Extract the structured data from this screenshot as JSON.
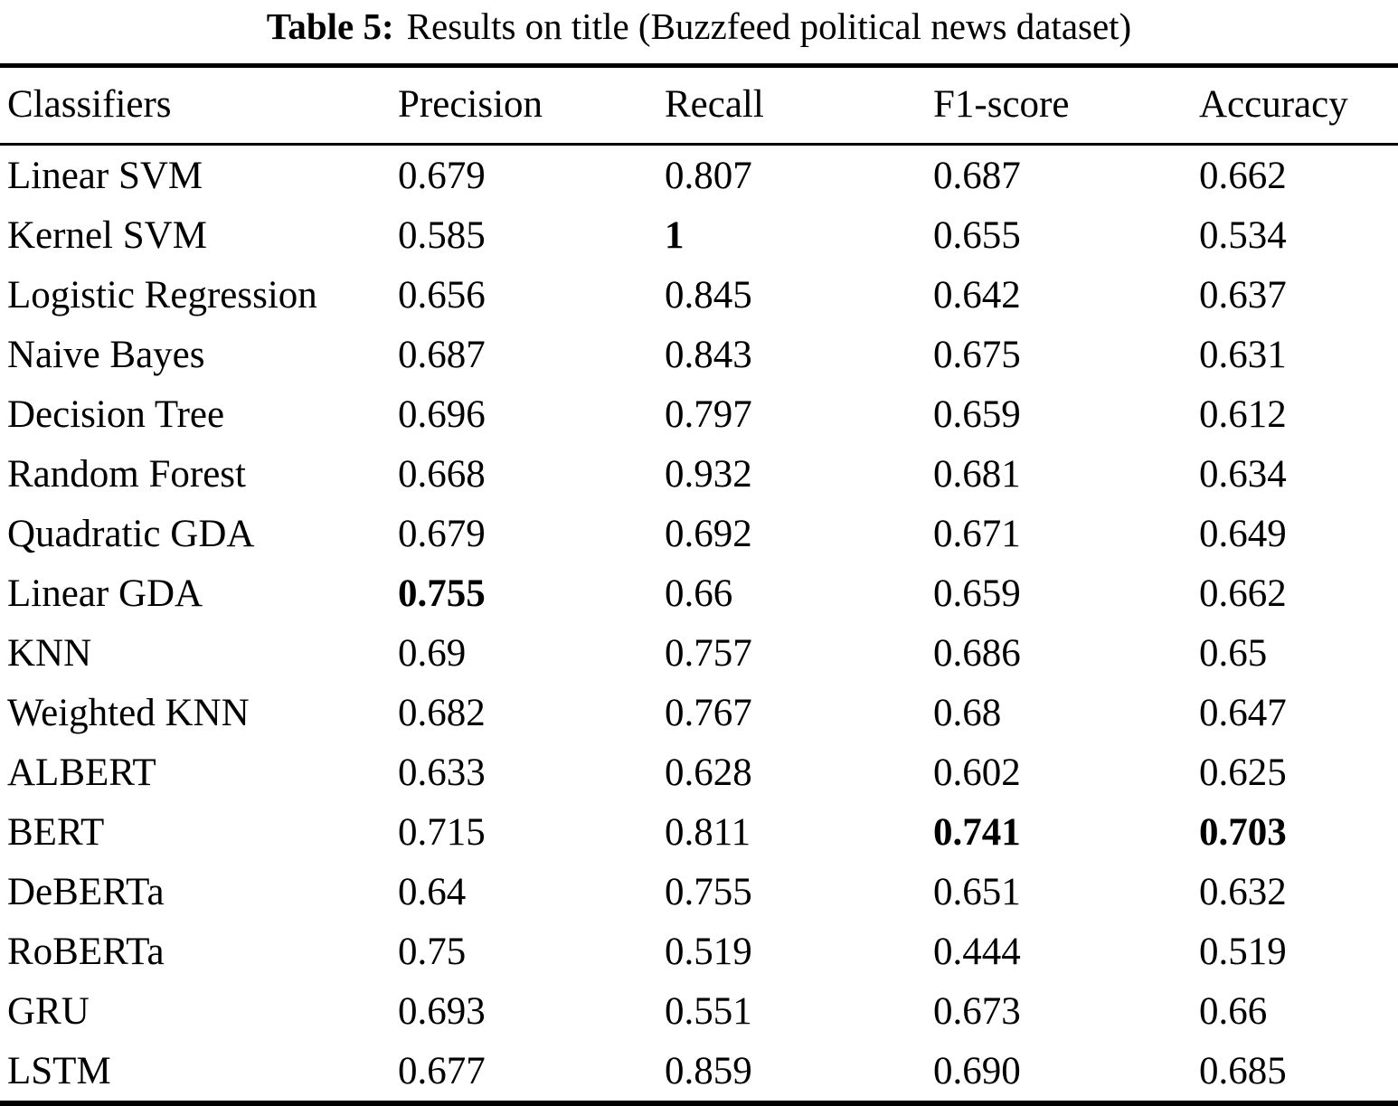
{
  "caption": {
    "label": "Table 5:",
    "text": "Results on title (Buzzfeed political news dataset)"
  },
  "table": {
    "columns": [
      "Classifiers",
      "Precision",
      "Recall",
      "F1-score",
      "Accuracy"
    ],
    "rows": [
      {
        "cells": [
          {
            "text": "Linear SVM"
          },
          {
            "text": "0.679"
          },
          {
            "text": "0.807"
          },
          {
            "text": "0.687"
          },
          {
            "text": "0.662"
          }
        ]
      },
      {
        "cells": [
          {
            "text": "Kernel SVM"
          },
          {
            "text": "0.585"
          },
          {
            "text": "1",
            "bold": true
          },
          {
            "text": "0.655"
          },
          {
            "text": "0.534"
          }
        ]
      },
      {
        "cells": [
          {
            "text": "Logistic Regression"
          },
          {
            "text": "0.656"
          },
          {
            "text": "0.845"
          },
          {
            "text": "0.642"
          },
          {
            "text": "0.637"
          }
        ]
      },
      {
        "cells": [
          {
            "text": "Naive Bayes"
          },
          {
            "text": "0.687"
          },
          {
            "text": "0.843"
          },
          {
            "text": "0.675"
          },
          {
            "text": "0.631"
          }
        ]
      },
      {
        "cells": [
          {
            "text": "Decision Tree"
          },
          {
            "text": "0.696"
          },
          {
            "text": "0.797"
          },
          {
            "text": "0.659"
          },
          {
            "text": "0.612"
          }
        ]
      },
      {
        "cells": [
          {
            "text": "Random Forest"
          },
          {
            "text": "0.668"
          },
          {
            "text": "0.932"
          },
          {
            "text": "0.681"
          },
          {
            "text": "0.634"
          }
        ]
      },
      {
        "cells": [
          {
            "text": "Quadratic GDA"
          },
          {
            "text": "0.679"
          },
          {
            "text": "0.692"
          },
          {
            "text": "0.671"
          },
          {
            "text": "0.649"
          }
        ]
      },
      {
        "cells": [
          {
            "text": "Linear GDA"
          },
          {
            "text": "0.755",
            "bold": true
          },
          {
            "text": "0.66"
          },
          {
            "text": "0.659"
          },
          {
            "text": "0.662"
          }
        ]
      },
      {
        "cells": [
          {
            "text": "KNN"
          },
          {
            "text": "0.69"
          },
          {
            "text": "0.757"
          },
          {
            "text": "0.686"
          },
          {
            "text": "0.65"
          }
        ]
      },
      {
        "cells": [
          {
            "text": "Weighted KNN"
          },
          {
            "text": "0.682"
          },
          {
            "text": "0.767"
          },
          {
            "text": "0.68"
          },
          {
            "text": "0.647"
          }
        ]
      },
      {
        "cells": [
          {
            "text": "ALBERT"
          },
          {
            "text": "0.633"
          },
          {
            "text": "0.628"
          },
          {
            "text": "0.602"
          },
          {
            "text": "0.625"
          }
        ]
      },
      {
        "cells": [
          {
            "text": "BERT"
          },
          {
            "text": "0.715"
          },
          {
            "text": "0.811"
          },
          {
            "text": "0.741",
            "bold": true
          },
          {
            "text": "0.703",
            "bold": true
          }
        ]
      },
      {
        "cells": [
          {
            "text": "DeBERTa"
          },
          {
            "text": "0.64"
          },
          {
            "text": "0.755"
          },
          {
            "text": "0.651"
          },
          {
            "text": "0.632"
          }
        ]
      },
      {
        "cells": [
          {
            "text": "RoBERTa"
          },
          {
            "text": "0.75"
          },
          {
            "text": "0.519"
          },
          {
            "text": "0.444"
          },
          {
            "text": "0.519"
          }
        ]
      },
      {
        "cells": [
          {
            "text": "GRU"
          },
          {
            "text": "0.693"
          },
          {
            "text": "0.551"
          },
          {
            "text": "0.673"
          },
          {
            "text": "0.66"
          }
        ]
      },
      {
        "cells": [
          {
            "text": "LSTM"
          },
          {
            "text": "0.677"
          },
          {
            "text": "0.859"
          },
          {
            "text": "0.690"
          },
          {
            "text": "0.685"
          }
        ]
      }
    ]
  }
}
